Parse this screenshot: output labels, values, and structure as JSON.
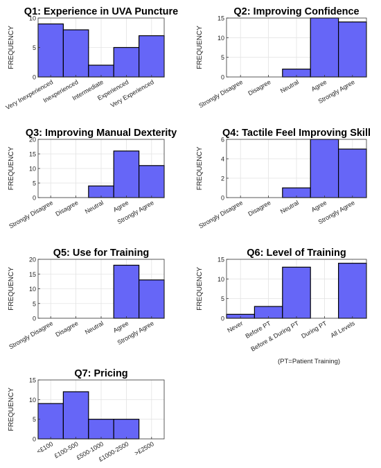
{
  "chart_data": [
    {
      "type": "bar",
      "title": "Q1: Experience in UVA Puncture",
      "ylabel": "FREQUENCY",
      "categories": [
        "Very Inexperienced",
        "Inexperienced",
        "Intermediate",
        "Experienced",
        "Very Experienced"
      ],
      "values": [
        9,
        8,
        2,
        5,
        7
      ],
      "ylim": [
        0,
        10
      ],
      "yticks": [
        0,
        5,
        10
      ],
      "grid": true
    },
    {
      "type": "bar",
      "title": "Q2: Improving Confidence",
      "ylabel": "FREQUENCY",
      "categories": [
        "Strongly Disagree",
        "Disagree",
        "Neutral",
        "Agree",
        "Strongly Agree"
      ],
      "values": [
        0,
        0,
        2,
        15,
        14
      ],
      "ylim": [
        0,
        15
      ],
      "yticks": [
        0,
        5,
        10,
        15
      ],
      "grid": true
    },
    {
      "type": "bar",
      "title": "Q3: Improving Manual Dexterity",
      "ylabel": "FREQUENCY",
      "categories": [
        "Strongly Disagree",
        "Disagree",
        "Neutral",
        "Agree",
        "Strongly Agree"
      ],
      "values": [
        0,
        0,
        4,
        16,
        11
      ],
      "ylim": [
        0,
        20
      ],
      "yticks": [
        0,
        5,
        10,
        15,
        20
      ],
      "grid": true
    },
    {
      "type": "bar",
      "title": "Q4: Tactile Feel Improving Skill",
      "ylabel": "FREQUENCY",
      "categories": [
        "Strongly Disagree",
        "Disagree",
        "Neutral",
        "Agree",
        "Strongly Agree"
      ],
      "values": [
        0,
        0,
        1,
        6,
        5
      ],
      "ylim": [
        0,
        6
      ],
      "yticks": [
        0,
        2,
        4,
        6
      ],
      "grid": true
    },
    {
      "type": "bar",
      "title": "Q5: Use for Training",
      "ylabel": "FREQUENCY",
      "categories": [
        "Strongly Disagree",
        "Disagree",
        "Neutral",
        "Agree",
        "Strongly Agree"
      ],
      "values": [
        0,
        0,
        0,
        18,
        13
      ],
      "ylim": [
        0,
        20
      ],
      "yticks": [
        0,
        5,
        10,
        15,
        20
      ],
      "grid": true
    },
    {
      "type": "bar",
      "title": "Q6: Level of Training",
      "ylabel": "FREQUENCY",
      "categories": [
        "Never",
        "Before PT",
        "Before & During PT",
        "During PT",
        "All Levels"
      ],
      "values": [
        1,
        3,
        13,
        0,
        14
      ],
      "ylim": [
        0,
        15
      ],
      "yticks": [
        0,
        5,
        10,
        15
      ],
      "grid": true,
      "note": "(PT=Patient Training)"
    },
    {
      "type": "bar",
      "title": "Q7: Pricing",
      "ylabel": "FREQUENCY",
      "categories": [
        "<£100",
        "£100-500",
        "£500-1000",
        "£1000-2500",
        ">£2500"
      ],
      "values": [
        9,
        12,
        5,
        5,
        0
      ],
      "ylim": [
        0,
        15
      ],
      "yticks": [
        0,
        5,
        10,
        15
      ],
      "grid": true
    }
  ]
}
